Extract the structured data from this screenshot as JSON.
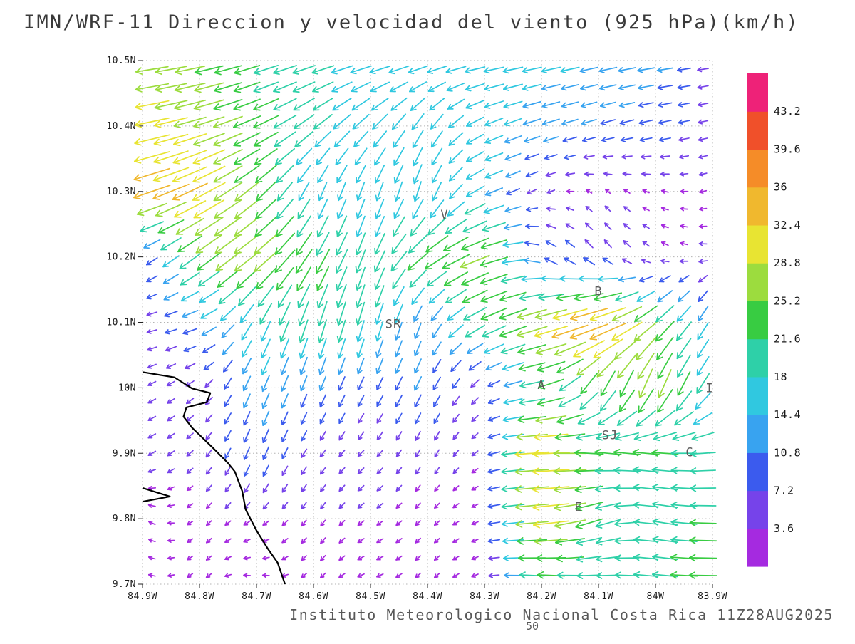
{
  "chart_data": {
    "type": "vector_field",
    "title": "IMN/WRF-11 Direccion y velocidad del viento (925 hPa)(km/h)",
    "units": "km/h",
    "level": "925 hPa",
    "x_axis": {
      "range": [
        -84.9,
        -83.9
      ],
      "ticks": [
        {
          "value": -84.9,
          "label": "84.9W"
        },
        {
          "value": -84.8,
          "label": "84.8W"
        },
        {
          "value": -84.7,
          "label": "84.7W"
        },
        {
          "value": -84.6,
          "label": "84.6W"
        },
        {
          "value": -84.5,
          "label": "84.5W"
        },
        {
          "value": -84.4,
          "label": "84.4W"
        },
        {
          "value": -84.3,
          "label": "84.3W"
        },
        {
          "value": -84.2,
          "label": "84.2W"
        },
        {
          "value": -84.1,
          "label": "84.1W"
        },
        {
          "value": -84.0,
          "label": "84W"
        },
        {
          "value": -83.9,
          "label": "83.9W"
        }
      ]
    },
    "y_axis": {
      "range": [
        9.7,
        10.5
      ],
      "ticks": [
        {
          "value": 10.5,
          "label": "10.5N"
        },
        {
          "value": 10.4,
          "label": "10.4N"
        },
        {
          "value": 10.3,
          "label": "10.3N"
        },
        {
          "value": 10.2,
          "label": "10.2N"
        },
        {
          "value": 10.1,
          "label": "10.1N"
        },
        {
          "value": 10.0,
          "label": "10N"
        },
        {
          "value": 9.9,
          "label": "9.9N"
        },
        {
          "value": 9.8,
          "label": "9.8N"
        },
        {
          "value": 9.7,
          "label": "9.7N"
        }
      ]
    },
    "colorbar": {
      "levels": [
        3.6,
        7.2,
        10.8,
        14.4,
        18,
        21.6,
        25.2,
        28.8,
        32.4,
        36,
        39.6,
        43.2
      ],
      "labels": [
        "3.6",
        "7.2",
        "10.8",
        "14.4",
        "18",
        "21.6",
        "25.2",
        "28.8",
        "32.4",
        "36",
        "39.6",
        "43.2"
      ],
      "colors": [
        "#a52ae0",
        "#7643ea",
        "#3b5bee",
        "#38a3f0",
        "#30c8e0",
        "#2ed0a8",
        "#38cc42",
        "#9cdc3e",
        "#e8e432",
        "#f0b82e",
        "#f58c28",
        "#f0502a",
        "#ee2278"
      ]
    },
    "grid": {
      "lons": [
        -84.9,
        -84.8,
        -84.7,
        -84.6,
        -84.5,
        -84.4,
        -84.3,
        -84.2,
        -84.1,
        -84.0,
        -83.9
      ],
      "lats": [
        9.7,
        9.8,
        9.9,
        10.0,
        10.1,
        10.2,
        10.3,
        10.4,
        10.5
      ],
      "u": [
        [
          -3,
          -2,
          -3,
          -2,
          -3,
          -2,
          -3,
          -22,
          -18,
          -20,
          -24
        ],
        [
          -3,
          -2,
          -3,
          -2,
          -3,
          -2,
          -3,
          -33,
          -20,
          -20,
          -22
        ],
        [
          -4,
          -3,
          -4,
          -3,
          -3,
          -2,
          -3,
          -34,
          -22,
          -22,
          -20
        ],
        [
          -4,
          -4,
          -5,
          -4,
          -4,
          -5,
          -4,
          -22,
          -10,
          -10,
          -10
        ],
        [
          -5,
          -12,
          -8,
          -6,
          -5,
          -4,
          -20,
          -28,
          -38,
          -18,
          -6
        ],
        [
          -5,
          -20,
          -22,
          -12,
          -6,
          -20,
          -26,
          -8,
          -5,
          -3,
          -4
        ],
        [
          -32,
          -30,
          -18,
          -6,
          -5,
          -5,
          -15,
          -4,
          -2,
          -3,
          -3
        ],
        [
          -30,
          -27,
          -22,
          -15,
          -12,
          -8,
          -14,
          -13,
          -10,
          -9,
          -5
        ],
        [
          -28,
          -24,
          -20,
          -18,
          -17,
          -16,
          -16,
          -15,
          -14,
          -13,
          -6
        ]
      ],
      "v": [
        [
          1,
          -2,
          1,
          -2,
          -1,
          -2,
          -1,
          2,
          0,
          2,
          0
        ],
        [
          2,
          -2,
          -2,
          -3,
          -2,
          -2,
          -1,
          -3,
          -8,
          4,
          0
        ],
        [
          -2,
          -3,
          -10,
          -4,
          -3,
          -4,
          -2,
          -2,
          2,
          2,
          -2
        ],
        [
          -2,
          -3,
          -12,
          -10,
          -8,
          -10,
          -3,
          -4,
          -20,
          -26,
          -14
        ],
        [
          -1,
          -4,
          -16,
          -20,
          -18,
          -10,
          -10,
          -8,
          -12,
          -16,
          -12
        ],
        [
          -3,
          -15,
          -17,
          -20,
          -18,
          -14,
          -9,
          5,
          6,
          2,
          0
        ],
        [
          -10,
          -15,
          -16,
          -14,
          -14,
          -16,
          -6,
          -2,
          2,
          1,
          -1
        ],
        [
          -6,
          -8,
          -10,
          -12,
          -12,
          -13,
          -6,
          -4,
          -3,
          -2,
          -1
        ],
        [
          -4,
          -5,
          -6,
          -5,
          -4,
          -4,
          -3,
          -3,
          -3,
          -2,
          -1
        ]
      ]
    },
    "stations": [
      {
        "label": "V",
        "lon": -84.37,
        "lat": 10.265
      },
      {
        "label": "B",
        "lon": -84.1,
        "lat": 10.148
      },
      {
        "label": "SR",
        "lon": -84.46,
        "lat": 10.098
      },
      {
        "label": "A",
        "lon": -84.2,
        "lat": 10.005
      },
      {
        "label": "I",
        "lon": -83.905,
        "lat": 10.0
      },
      {
        "label": "SJ",
        "lon": -84.08,
        "lat": 9.928
      },
      {
        "label": "C",
        "lon": -83.94,
        "lat": 9.902
      },
      {
        "label": "E",
        "lon": -84.135,
        "lat": 9.818
      }
    ],
    "coastline": [
      [
        [
          -84.9,
          10.024
        ],
        [
          -84.844,
          10.016
        ],
        [
          -84.813,
          9.999
        ],
        [
          -84.781,
          9.992
        ],
        [
          -84.787,
          9.978
        ],
        [
          -84.823,
          9.97
        ],
        [
          -84.828,
          9.956
        ],
        [
          -84.813,
          9.939
        ],
        [
          -84.775,
          9.907
        ],
        [
          -84.75,
          9.885
        ],
        [
          -84.738,
          9.872
        ],
        [
          -84.725,
          9.842
        ],
        [
          -84.719,
          9.814
        ],
        [
          -84.7,
          9.782
        ],
        [
          -84.68,
          9.754
        ],
        [
          -84.663,
          9.733
        ],
        [
          -84.65,
          9.7
        ]
      ],
      [
        [
          -84.9,
          9.847
        ],
        [
          -84.852,
          9.834
        ],
        [
          -84.9,
          9.826
        ]
      ]
    ]
  },
  "footer": {
    "credit": "Instituto Meteorologico Nacional Costa Rica 11Z28AUG2025",
    "bottom_label": "50"
  }
}
